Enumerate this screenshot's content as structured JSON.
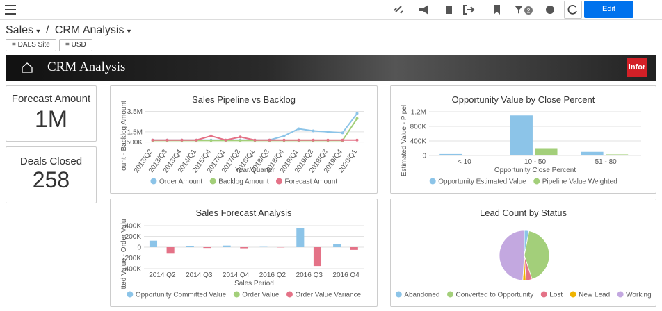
{
  "toolbar": {
    "filter_count": "2",
    "edit_label": "Edit"
  },
  "breadcrumb": {
    "section": "Sales",
    "separator": "/",
    "page": "CRM Analysis"
  },
  "filters": [
    "= DALS Site",
    "= USD"
  ],
  "banner": {
    "title": "CRM Analysis",
    "logo": "infor"
  },
  "kpis": [
    {
      "label": "Forecast Amount",
      "value": "1M"
    },
    {
      "label": "Deals Closed",
      "value": "258"
    }
  ],
  "charts": [
    {
      "type": "line",
      "title": "Sales Pipeline vs Backlog",
      "y_label": "ount - Backlog Amount",
      "x_label": "Year/Quarter",
      "categories": [
        "2013/Q2",
        "2013/Q3",
        "2013/Q4",
        "2014/Q1",
        "2015/Q4",
        "2017/Q1",
        "2017/Q2",
        "2018/Q1",
        "2018/Q3",
        "2018/Q4",
        "2019/Q1",
        "2019/Q2",
        "2019/Q3",
        "2019/Q4",
        "2020/Q1"
      ],
      "series": [
        {
          "name": "Order Amount",
          "color": "#8cc4e8",
          "values": [
            700000,
            700000,
            700000,
            700000,
            700000,
            700000,
            700000,
            700000,
            700000,
            1100000,
            1800000,
            1600000,
            1500000,
            1400000,
            3300000
          ]
        },
        {
          "name": "Backlog Amount",
          "color": "#a3cf7a",
          "values": [
            650000,
            650000,
            650000,
            650000,
            650000,
            650000,
            650000,
            650000,
            650000,
            650000,
            650000,
            650000,
            650000,
            650000,
            2800000
          ]
        },
        {
          "name": "Forecast Amount",
          "color": "#e47287",
          "values": [
            700000,
            700000,
            700000,
            700000,
            1100000,
            700000,
            1000000,
            700000,
            700000,
            700000,
            700000,
            700000,
            700000,
            700000,
            700000
          ]
        }
      ],
      "ylim": [
        0,
        3600000
      ],
      "yticks": [
        {
          "value": 500000,
          "label": "500K"
        },
        {
          "value": 1500000,
          "label": "1.5M"
        },
        {
          "value": 3500000,
          "label": "3.5M"
        }
      ],
      "grid": true
    },
    {
      "type": "bar",
      "title": "Opportunity Value by Close Percent",
      "y_label": "Estimated Value - Pipel",
      "x_label": "Opportunity Close Percent",
      "categories": [
        "< 10",
        "10 - 50",
        "51 - 80"
      ],
      "series": [
        {
          "name": "Opportunity Estimated Value",
          "color": "#8cc4e8",
          "values": [
            40000,
            1100000,
            100000
          ]
        },
        {
          "name": "Pipeline Value Weighted",
          "color": "#a3cf7a",
          "values": [
            5000,
            200000,
            30000
          ]
        }
      ],
      "ylim": [
        0,
        1200000
      ],
      "yticks": [
        0,
        {
          "value": 400000,
          "label": "400K"
        },
        {
          "value": 800000,
          "label": "800K"
        },
        {
          "value": 1200000,
          "label": "1.2M"
        }
      ],
      "grid": true
    },
    {
      "type": "bar",
      "title": "Sales Forecast Analysis",
      "y_label": "tted Value - Order Valu",
      "x_label": "Sales Period",
      "categories": [
        "2014 Q2",
        "2014 Q3",
        "2014 Q4",
        "2016 Q2",
        "2016 Q3",
        "2016 Q4"
      ],
      "series": [
        {
          "name": "Opportunity Committed Value",
          "color": "#8cc4e8",
          "values": [
            120000,
            20000,
            30000,
            5000,
            350000,
            60000
          ]
        },
        {
          "name": "Order Value",
          "color": "#a3cf7a",
          "values": [
            0,
            0,
            0,
            0,
            0,
            0
          ]
        },
        {
          "name": "Order Value Variance",
          "color": "#e47287",
          "values": [
            -120000,
            -15000,
            -20000,
            -5000,
            -350000,
            -50000
          ]
        }
      ],
      "ylim": [
        -400000,
        400000
      ],
      "yticks": [
        {
          "value": -400000,
          "label": "-400K"
        },
        {
          "value": -200000,
          "label": "-200K"
        },
        0,
        {
          "value": 200000,
          "label": "200K"
        },
        {
          "value": 400000,
          "label": "400K"
        }
      ],
      "grid": true
    },
    {
      "type": "pie",
      "title": "Lead Count by Status",
      "categories": [
        "Abandoned",
        "Converted to Opportunity",
        "Lost",
        "New Lead",
        "Working"
      ],
      "values": [
        3,
        42,
        4,
        2,
        49
      ],
      "colors": [
        "#8cc4e8",
        "#a3cf7a",
        "#e47287",
        "#f0b400",
        "#c3a8e0"
      ]
    }
  ]
}
